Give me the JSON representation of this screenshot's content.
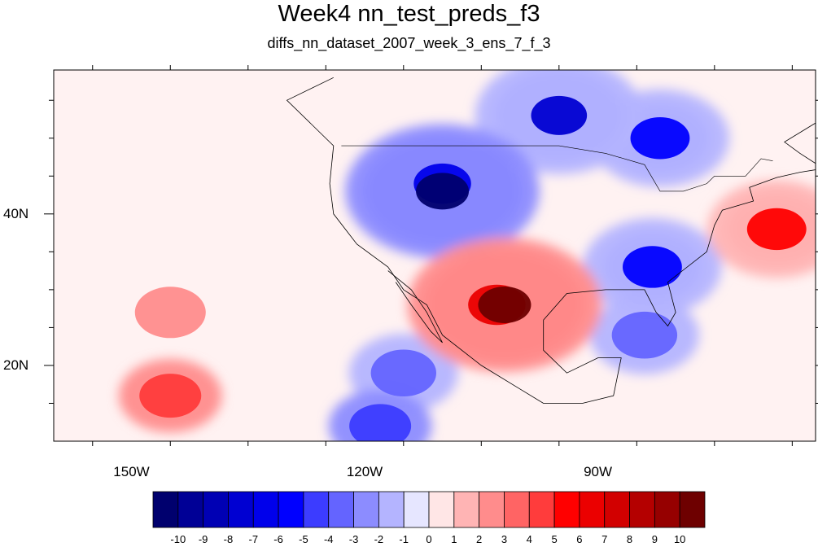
{
  "title": "Week4 nn_test_preds_f3",
  "subtitle": "diffs_nn_dataset_2007_week_3_ens_7_f_3",
  "map": {
    "lon_range": [
      -160,
      -62
    ],
    "lat_range": [
      10,
      59
    ],
    "x_ticks": [
      {
        "lon": -150,
        "label": "150W"
      },
      {
        "lon": -120,
        "label": "120W"
      },
      {
        "lon": -90,
        "label": "90W"
      }
    ],
    "y_ticks": [
      {
        "lat": 40,
        "label": "40N"
      },
      {
        "lat": 20,
        "label": "20N"
      }
    ]
  },
  "colorbar": {
    "labels": [
      "-10",
      "-9",
      "-8",
      "-7",
      "-6",
      "-5",
      "-4",
      "-3",
      "-2",
      "-1",
      "0",
      "1",
      "2",
      "3",
      "4",
      "5",
      "6",
      "7",
      "8",
      "9",
      "10"
    ],
    "colors": [
      "#00006e",
      "#000096",
      "#0000b4",
      "#0000d2",
      "#0000eb",
      "#0000ff",
      "#3c3cff",
      "#6464ff",
      "#8c8cff",
      "#b4b4ff",
      "#e6e6ff",
      "#ffe6e6",
      "#ffb4b4",
      "#ff8c8c",
      "#ff6464",
      "#ff3c3c",
      "#ff0000",
      "#eb0000",
      "#d20000",
      "#b40000",
      "#960000",
      "#6e0000"
    ]
  },
  "features": [
    {
      "name": "west-blue-anomaly",
      "lon": -110,
      "lat": 43,
      "value": -10
    },
    {
      "name": "west-blue-anomaly-outer",
      "lon": -110,
      "lat": 44,
      "value": -6
    },
    {
      "name": "north-blue-anomaly",
      "lon": -95,
      "lat": 53,
      "value": -7
    },
    {
      "name": "canada-blue-anomaly",
      "lon": -82,
      "lat": 50,
      "value": -5
    },
    {
      "name": "southeast-blue-anomaly",
      "lon": -83,
      "lat": 33,
      "value": -5
    },
    {
      "name": "texas-red-anomaly",
      "lon": -102,
      "lat": 28,
      "value": 10
    },
    {
      "name": "texas-red-anomaly-outer",
      "lon": -103,
      "lat": 28,
      "value": 6
    },
    {
      "name": "atlantic-red-anomaly",
      "lon": -67,
      "lat": 38,
      "value": 5
    },
    {
      "name": "pacific-red-anomaly",
      "lon": -145,
      "lat": 16,
      "value": 4
    },
    {
      "name": "subtropic-blue-anomaly",
      "lon": -115,
      "lat": 19,
      "value": -3
    },
    {
      "name": "south-blue-anomaly",
      "lon": -118,
      "lat": 12,
      "value": -4
    },
    {
      "name": "gulf-blue-anomaly",
      "lon": -84,
      "lat": 24,
      "value": -3
    },
    {
      "name": "east-pacific-red",
      "lon": -145,
      "lat": 27,
      "value": 2
    }
  ]
}
